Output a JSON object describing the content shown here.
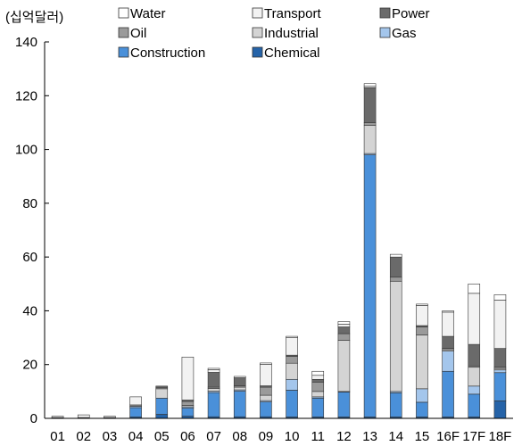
{
  "chart_data": {
    "type": "bar",
    "stacked": true,
    "ylabel": "(십억달러)",
    "ylim": [
      0,
      140
    ],
    "yticks": [
      0,
      20,
      40,
      60,
      80,
      100,
      120,
      140
    ],
    "grid": false,
    "legend_position": "top",
    "categories": [
      "01",
      "02",
      "03",
      "04",
      "05",
      "06",
      "07",
      "08",
      "09",
      "10",
      "11",
      "12",
      "13",
      "14",
      "15",
      "16F",
      "17F",
      "18F"
    ],
    "series": [
      {
        "name": "Chemical",
        "color": "#2563a8",
        "values": [
          0.3,
          0.3,
          0.3,
          0.5,
          1.5,
          0.8,
          0.6,
          0.6,
          0.6,
          0.5,
          0.5,
          0.5,
          0.5,
          0.5,
          0.5,
          0.5,
          0.5,
          6.5
        ]
      },
      {
        "name": "Construction",
        "color": "#4a90d9",
        "values": [
          0,
          0,
          0,
          3.5,
          6,
          3,
          9,
          9.5,
          5.5,
          10,
          7,
          9.3,
          97.5,
          9,
          5.5,
          17,
          8.5,
          10.5
        ]
      },
      {
        "name": "Gas",
        "color": "#a4c6ec",
        "values": [
          0,
          0,
          0,
          0.5,
          0,
          0.5,
          0.5,
          0.5,
          0.5,
          4,
          0.5,
          0.2,
          0.5,
          0.5,
          5,
          7.5,
          3,
          1
        ]
      },
      {
        "name": "Industrial",
        "color": "#d4d4d4",
        "values": [
          0,
          0,
          0,
          0,
          3.5,
          0.5,
          1,
          1,
          2,
          6,
          2,
          19,
          10.5,
          41,
          20,
          0.5,
          7,
          0.5
        ]
      },
      {
        "name": "Oil",
        "color": "#9a9a9a",
        "values": [
          0,
          0,
          0,
          0.5,
          0.5,
          1.5,
          0.5,
          0.5,
          3,
          2.5,
          3.5,
          2.5,
          1,
          1.5,
          3,
          0.5,
          0.5,
          0.5
        ]
      },
      {
        "name": "Power",
        "color": "#6a6a6a",
        "values": [
          0,
          0,
          0,
          0,
          0.5,
          0.5,
          5.5,
          3,
          0.5,
          0.5,
          1,
          2.5,
          13,
          7.5,
          0.5,
          4.5,
          8,
          7
        ]
      },
      {
        "name": "Transport",
        "color": "#f2f2f2",
        "values": [
          0.5,
          1,
          0.5,
          3,
          0,
          16,
          1,
          0,
          8,
          6.5,
          1.5,
          1,
          0.5,
          0,
          7.5,
          9,
          19,
          18
        ]
      },
      {
        "name": "Water",
        "color": "#ffffff",
        "values": [
          0,
          0,
          0,
          0,
          0,
          0,
          0.5,
          0.5,
          0.5,
          0.5,
          1.5,
          1,
          1,
          1,
          0.5,
          0.5,
          3.5,
          2
        ]
      }
    ],
    "legend_order": [
      "Water",
      "Transport",
      "Power",
      "Oil",
      "Industrial",
      "Gas",
      "Construction",
      "Chemical"
    ]
  }
}
